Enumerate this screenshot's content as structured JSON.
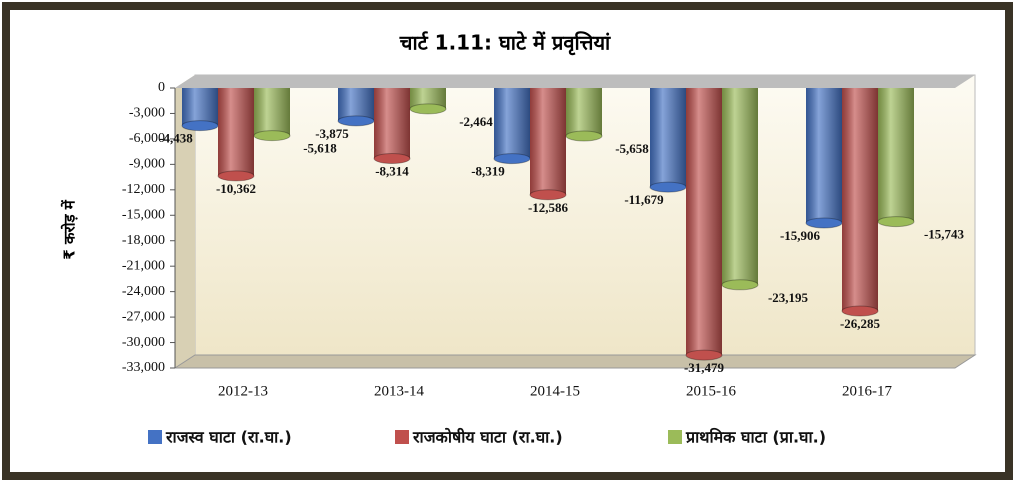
{
  "chart_data": {
    "type": "bar",
    "title": "चार्ट 1.11: घाटे में प्रवृत्तियां",
    "y_label": "₹ करोड़ में",
    "categories": [
      "2012-13",
      "2013-14",
      "2014-15",
      "2015-16",
      "2016-17"
    ],
    "series": [
      {
        "name": "राजस्व घाटा (रा.घा.)",
        "color": "#4472c4",
        "values": [
          -4438,
          -3875,
          -8319,
          -11679,
          -15906
        ],
        "value_labels": [
          "-4,438",
          "-3,875",
          "-8,319",
          "-11,679",
          "-15,906"
        ]
      },
      {
        "name": "राजकोषीय घाटा (रा.घा.)",
        "color": "#c0504d",
        "values": [
          -10362,
          -8314,
          -12586,
          -31479,
          -26285
        ],
        "value_labels": [
          "-10,362",
          "-8,314",
          "-12,586",
          "-31,479",
          "-26,285"
        ]
      },
      {
        "name": "प्राथमिक घाटा (प्रा.घा.)",
        "color": "#9bbb59",
        "values": [
          -5618,
          -2464,
          -5658,
          -23195,
          -15743
        ],
        "value_labels": [
          "-5,618",
          "-2,464",
          "-5,658",
          "-23,195",
          "-15,743"
        ]
      }
    ],
    "ylim": [
      -33000,
      0
    ],
    "yticks": [
      0,
      {
        "value": -3000,
        "label": "-3,000"
      },
      {
        "value": -6000,
        "label": "-6,000"
      },
      {
        "value": -9000,
        "label": "-9,000"
      },
      {
        "value": -12000,
        "label": "-12,000"
      },
      {
        "value": -15000,
        "label": "-15,000"
      },
      {
        "value": -18000,
        "label": "-18,000"
      },
      {
        "value": -21000,
        "label": "-21,000"
      },
      {
        "value": -24000,
        "label": "-24,000"
      },
      {
        "value": -27000,
        "label": "-27,000"
      },
      {
        "value": -30000,
        "label": "-30,000"
      },
      {
        "value": -33000,
        "label": "-33,000"
      }
    ],
    "legend": "bottom"
  }
}
